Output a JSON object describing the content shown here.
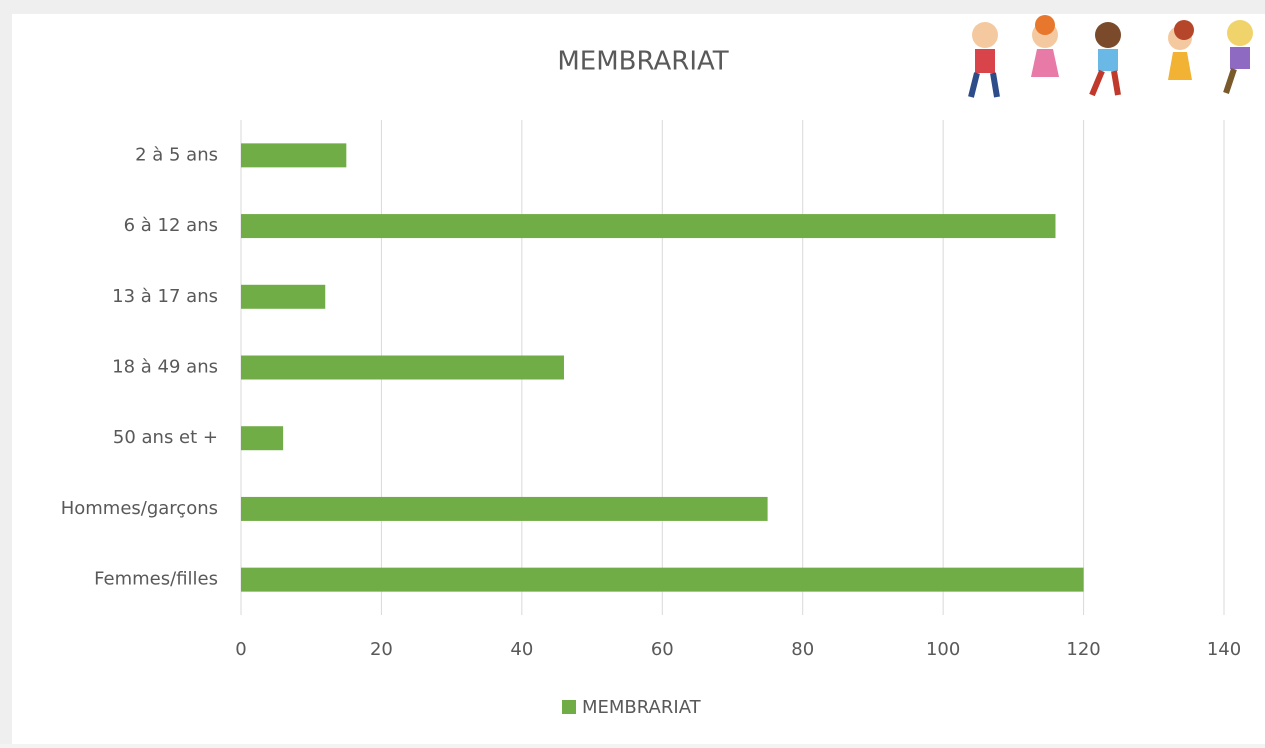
{
  "chart_data": {
    "type": "bar",
    "orientation": "horizontal",
    "title": "MEMBRARIAT",
    "categories": [
      "2 à 5 ans",
      "6 à 12 ans",
      "13 à 17 ans",
      "18 à 49 ans",
      "50 ans et +",
      "Hommes/garçons",
      "Femmes/filles"
    ],
    "series": [
      {
        "name": "MEMBRARIAT",
        "color": "#70ad47",
        "values": [
          15,
          116,
          12,
          46,
          6,
          75,
          120
        ]
      }
    ],
    "xlim": [
      0,
      140
    ],
    "xticks": [
      0,
      20,
      40,
      60,
      80,
      100,
      120,
      140
    ],
    "grid": true,
    "legend": "bottom"
  }
}
